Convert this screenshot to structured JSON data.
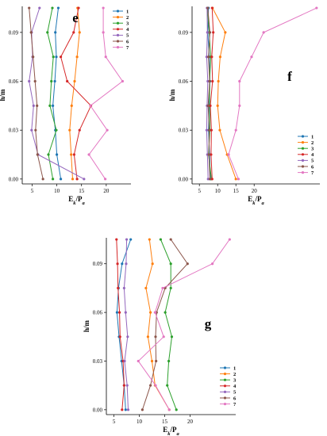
{
  "chart_data": [
    {
      "type": "line",
      "panel_label": "e",
      "xlabel": "E",
      "xlabel_sub": "k",
      "xlabel_tail": "/P",
      "xlabel_sub2": "a",
      "ylabel": "h/m",
      "xlim": [
        3,
        25
      ],
      "ylim": [
        -0.003,
        0.106
      ],
      "xticks": [
        5,
        10,
        15,
        20
      ],
      "yticks": [
        0.0,
        0.03,
        0.06,
        0.09
      ],
      "ytick_labels": [
        "0.00",
        "0.03",
        "0.06",
        "0.09"
      ],
      "legend_position": "top-right",
      "series": [
        {
          "name": "1",
          "color": "#1f77b4",
          "y": [
            0.0,
            0.015,
            0.03,
            0.045,
            0.06,
            0.075,
            0.09,
            0.105
          ],
          "x": [
            10.8,
            10.0,
            9.7,
            9.2,
            9.6,
            9.9,
            9.7,
            10.3
          ]
        },
        {
          "name": "2",
          "color": "#ff7f0e",
          "y": [
            0.0,
            0.015,
            0.03,
            0.045,
            0.06,
            0.075,
            0.09,
            0.105
          ],
          "x": [
            13.2,
            12.9,
            12.6,
            13.0,
            13.6,
            14.1,
            14.6,
            14.2
          ]
        },
        {
          "name": "3",
          "color": "#2ca02c",
          "y": [
            0.0,
            0.015,
            0.03,
            0.045,
            0.06,
            0.075,
            0.09,
            0.105
          ],
          "x": [
            9.2,
            8.3,
            9.9,
            8.6,
            8.9,
            9.3,
            8.1,
            9.1
          ]
        },
        {
          "name": "4",
          "color": "#d62728",
          "y": [
            0.0,
            0.015,
            0.03,
            0.045,
            0.06,
            0.075,
            0.09,
            0.105
          ],
          "x": [
            14.1,
            13.5,
            14.6,
            16.9,
            12.1,
            10.8,
            13.4,
            14.4
          ]
        },
        {
          "name": "5",
          "color": "#9467bd",
          "y": [
            0.0,
            0.015,
            0.03,
            0.045,
            0.06,
            0.075,
            0.09,
            0.105
          ],
          "x": [
            15.5,
            6.2,
            4.9,
            5.3,
            4.4,
            5.1,
            4.9,
            6.5
          ]
        },
        {
          "name": "6",
          "color": "#8c564b",
          "y": [
            0.0,
            0.015,
            0.03,
            0.045,
            0.06,
            0.075,
            0.09,
            0.105
          ],
          "x": [
            7.2,
            6.1,
            5.7,
            6.0,
            5.6,
            5.2,
            4.8,
            4.4
          ]
        },
        {
          "name": "7",
          "color": "#e377c2",
          "y": [
            0.0,
            0.015,
            0.03,
            0.045,
            0.06,
            0.075,
            0.09,
            0.105
          ],
          "x": [
            19.8,
            16.5,
            20.2,
            16.8,
            23.3,
            19.9,
            19.4,
            19.4
          ]
        }
      ]
    },
    {
      "type": "line",
      "panel_label": "f",
      "xlabel": "E",
      "xlabel_sub": "k",
      "xlabel_tail": "/P",
      "xlabel_sub2": "a",
      "ylabel": "h/m",
      "xlim": [
        3,
        38
      ],
      "ylim": [
        -0.003,
        0.106
      ],
      "xticks": [
        5,
        10,
        15,
        20
      ],
      "yticks": [
        0.0,
        0.03,
        0.06,
        0.09
      ],
      "ytick_labels": [
        "0.00",
        "0.03",
        "0.06",
        "0.09"
      ],
      "legend_position": "bottom-right",
      "series": [
        {
          "name": "1",
          "color": "#1f77b4",
          "y": [
            0.0,
            0.015,
            0.03,
            0.045,
            0.06,
            0.075,
            0.09,
            0.105
          ],
          "x": [
            8.0,
            7.8,
            7.5,
            7.6,
            7.9,
            7.7,
            7.3,
            7.5
          ]
        },
        {
          "name": "2",
          "color": "#ff7f0e",
          "y": [
            0.0,
            0.015,
            0.03,
            0.045,
            0.06,
            0.075,
            0.09,
            0.105
          ],
          "x": [
            15.0,
            12.6,
            10.6,
            10.0,
            10.2,
            10.7,
            12.1,
            8.6
          ]
        },
        {
          "name": "3",
          "color": "#2ca02c",
          "y": [
            0.0,
            0.015,
            0.03,
            0.045,
            0.06,
            0.075,
            0.09,
            0.105
          ],
          "x": [
            8.3,
            7.5,
            7.9,
            7.8,
            7.8,
            8.1,
            7.7,
            7.2
          ]
        },
        {
          "name": "4",
          "color": "#d62728",
          "y": [
            0.0,
            0.015,
            0.03,
            0.045,
            0.06,
            0.075,
            0.09,
            0.105
          ],
          "x": [
            8.5,
            8.2,
            8.3,
            8.0,
            8.6,
            8.4,
            8.8,
            8.5
          ]
        },
        {
          "name": "5",
          "color": "#9467bd",
          "y": [
            0.0,
            0.015,
            0.03,
            0.045,
            0.06,
            0.075,
            0.09,
            0.105
          ],
          "x": [
            7.4,
            7.2,
            7.0,
            7.1,
            7.3,
            7.0,
            7.2,
            7.1
          ]
        },
        {
          "name": "6",
          "color": "#8c564b",
          "y": [
            0.0,
            0.015,
            0.03,
            0.045,
            0.06,
            0.075,
            0.09,
            0.105
          ],
          "x": [
            7.9,
            7.6,
            7.7,
            7.4,
            7.8,
            7.5,
            7.9,
            7.3
          ]
        },
        {
          "name": "7",
          "color": "#e377c2",
          "y": [
            0.0,
            0.015,
            0.03,
            0.045,
            0.06,
            0.075,
            0.09,
            0.105
          ],
          "x": [
            15.7,
            13.0,
            15.0,
            16.0,
            16.0,
            19.3,
            22.6,
            37.1
          ]
        }
      ]
    },
    {
      "type": "line",
      "panel_label": "g",
      "xlabel": "E",
      "xlabel_sub": "k",
      "xlabel_tail": "/P",
      "xlabel_sub2": "a",
      "ylabel": "h/m",
      "xlim": [
        3.5,
        29
      ],
      "ylim": [
        -0.003,
        0.106
      ],
      "xticks": [
        5,
        10,
        15,
        20
      ],
      "yticks": [
        0.0,
        0.03,
        0.06,
        0.09
      ],
      "ytick_labels": [
        "0.00",
        "0.03",
        "0.06",
        "0.09"
      ],
      "legend_position": "bottom-right",
      "series": [
        {
          "name": "1",
          "color": "#1f77b4",
          "y": [
            0.0,
            0.015,
            0.03,
            0.045,
            0.06,
            0.075,
            0.09,
            0.105
          ],
          "x": [
            7.3,
            7.0,
            6.5,
            6.0,
            5.6,
            5.9,
            6.6,
            8.3
          ]
        },
        {
          "name": "2",
          "color": "#ff7f0e",
          "y": [
            0.0,
            0.015,
            0.03,
            0.045,
            0.06,
            0.075,
            0.09,
            0.105
          ],
          "x": [
            15.9,
            13.1,
            12.5,
            11.7,
            12.2,
            11.3,
            12.6,
            12.0
          ]
        },
        {
          "name": "3",
          "color": "#2ca02c",
          "y": [
            0.0,
            0.015,
            0.03,
            0.045,
            0.06,
            0.075,
            0.09,
            0.105
          ],
          "x": [
            17.3,
            15.5,
            15.8,
            16.4,
            15.1,
            16.2,
            16.2,
            14.2
          ]
        },
        {
          "name": "4",
          "color": "#d62728",
          "y": [
            0.0,
            0.015,
            0.03,
            0.045,
            0.06,
            0.075,
            0.09,
            0.105
          ],
          "x": [
            6.6,
            7.0,
            6.8,
            6.2,
            6.1,
            5.8,
            5.7,
            5.5
          ]
        },
        {
          "name": "5",
          "color": "#9467bd",
          "y": [
            0.0,
            0.015,
            0.03,
            0.045,
            0.06,
            0.075,
            0.09,
            0.105
          ],
          "x": [
            7.8,
            7.6,
            7.1,
            7.7,
            7.3,
            7.0,
            7.4,
            7.5
          ]
        },
        {
          "name": "6",
          "color": "#8c564b",
          "y": [
            0.0,
            0.015,
            0.03,
            0.045,
            0.06,
            0.075,
            0.09,
            0.105
          ],
          "x": [
            10.6,
            12.2,
            13.3,
            13.2,
            13.4,
            15.1,
            19.5,
            16.2
          ]
        },
        {
          "name": "7",
          "color": "#e377c2",
          "y": [
            0.0,
            0.015,
            0.03,
            0.045,
            0.06,
            0.075,
            0.09,
            0.105
          ],
          "x": [
            15.9,
            13.2,
            9.8,
            14.8,
            13.1,
            14.6,
            24.4,
            27.8
          ]
        }
      ]
    }
  ]
}
